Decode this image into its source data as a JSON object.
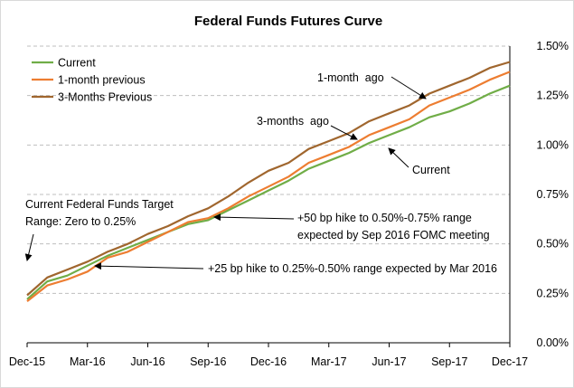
{
  "chart_data": {
    "type": "line",
    "title": "Federal Funds Futures Curve",
    "xlabel": "",
    "ylabel": "",
    "x": [
      "Dec-15",
      "Jan-16",
      "Feb-16",
      "Mar-16",
      "Apr-16",
      "May-16",
      "Jun-16",
      "Jul-16",
      "Aug-16",
      "Sep-16",
      "Oct-16",
      "Nov-16",
      "Dec-16",
      "Jan-17",
      "Feb-17",
      "Mar-17",
      "Apr-17",
      "May-17",
      "Jun-17",
      "Jul-17",
      "Aug-17",
      "Sep-17",
      "Oct-17",
      "Nov-17",
      "Dec-17"
    ],
    "x_tick_labels": [
      "Dec-15",
      "Mar-16",
      "Jun-16",
      "Sep-16",
      "Dec-16",
      "Mar-17",
      "Jun-17",
      "Sep-17",
      "Dec-17"
    ],
    "ylim": [
      0,
      1.5
    ],
    "y_ticks": [
      0,
      0.25,
      0.5,
      0.75,
      1.0,
      1.25,
      1.5
    ],
    "y_tick_labels": [
      "0.00%",
      "0.25%",
      "0.50%",
      "0.75%",
      "1.00%",
      "1.25%",
      "1.50%"
    ],
    "grid": "horizontal dashed",
    "legend_position": "top-left",
    "series": [
      {
        "name": "Current",
        "color": "#70ad47",
        "values": [
          0.22,
          0.31,
          0.34,
          0.39,
          0.44,
          0.48,
          0.52,
          0.56,
          0.6,
          0.62,
          0.67,
          0.72,
          0.77,
          0.82,
          0.88,
          0.92,
          0.96,
          1.01,
          1.05,
          1.09,
          1.14,
          1.17,
          1.21,
          1.26,
          1.3
        ]
      },
      {
        "name": "1-month previous",
        "color": "#ed7d31",
        "values": [
          0.21,
          0.29,
          0.32,
          0.36,
          0.43,
          0.46,
          0.51,
          0.56,
          0.61,
          0.63,
          0.68,
          0.74,
          0.79,
          0.84,
          0.91,
          0.95,
          0.99,
          1.05,
          1.09,
          1.13,
          1.2,
          1.24,
          1.28,
          1.33,
          1.37
        ]
      },
      {
        "name": "3-Months Previous",
        "color": "#a0662e",
        "values": [
          0.24,
          0.33,
          0.37,
          0.41,
          0.46,
          0.5,
          0.55,
          0.59,
          0.64,
          0.68,
          0.74,
          0.81,
          0.87,
          0.91,
          0.98,
          1.02,
          1.06,
          1.12,
          1.16,
          1.2,
          1.26,
          1.3,
          1.34,
          1.39,
          1.42
        ]
      }
    ],
    "annotations": [
      {
        "lines": [
          "1-month  ago"
        ]
      },
      {
        "lines": [
          "3-months  ago"
        ]
      },
      {
        "lines": [
          "Current"
        ]
      },
      {
        "lines": [
          "Current Federal Funds Target",
          "Range: Zero to 0.25%"
        ]
      },
      {
        "lines": [
          "+50 bp hike to 0.50%-0.75% range",
          "expected by Sep 2016 FOMC meeting"
        ]
      },
      {
        "lines": [
          "+25 bp hike to 0.25%-0.50% range expected by Mar 2016"
        ]
      }
    ]
  }
}
